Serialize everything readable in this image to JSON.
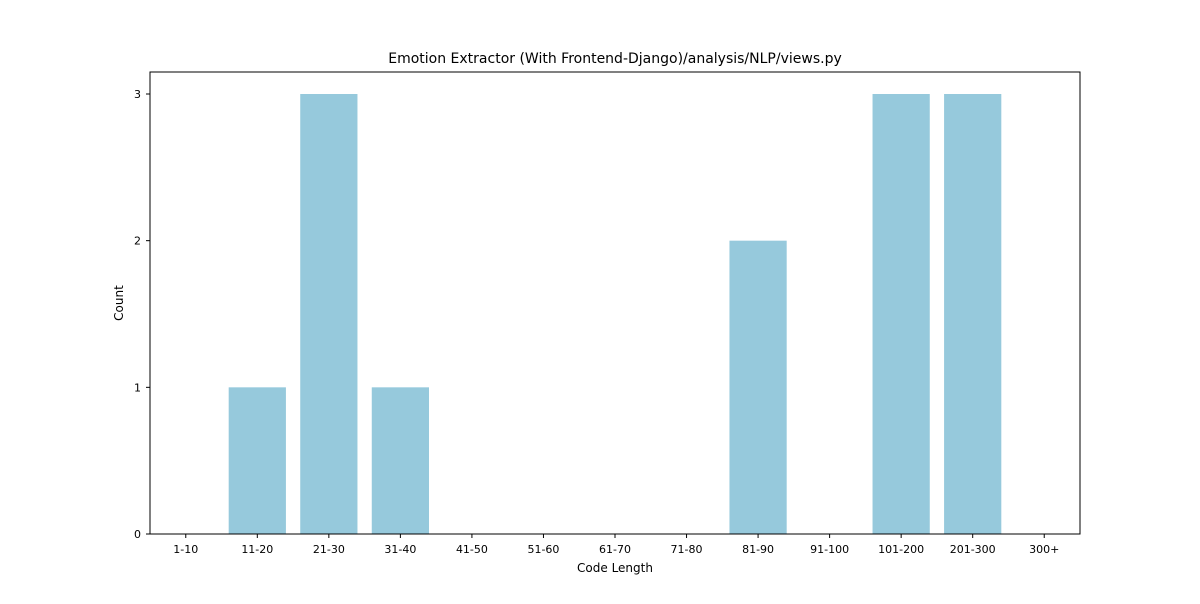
{
  "chart_data": {
    "type": "bar",
    "title": "Emotion Extractor (With Frontend-Django)/analysis/NLP/views.py",
    "xlabel": "Code Length",
    "ylabel": "Count",
    "categories": [
      "1-10",
      "11-20",
      "21-30",
      "31-40",
      "41-50",
      "51-60",
      "61-70",
      "71-80",
      "81-90",
      "91-100",
      "101-200",
      "201-300",
      "300+"
    ],
    "values": [
      0,
      1,
      3,
      1,
      0,
      0,
      0,
      0,
      2,
      0,
      3,
      3,
      0
    ],
    "yticks": [
      "0",
      "1",
      "2",
      "3"
    ],
    "ylim": [
      0,
      3.15
    ],
    "bar_color": "#96c9dc",
    "grid": false,
    "legend": "none"
  }
}
